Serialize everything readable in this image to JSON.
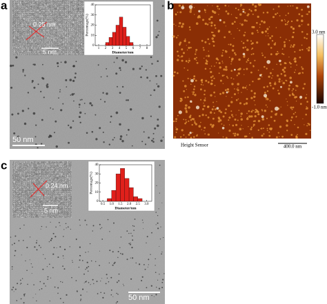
{
  "panels": [
    {
      "label": "a",
      "inset_lattice": "0.25 nm",
      "inset_scale": "5 nm",
      "scale_bar": "50 nm",
      "histogram": {
        "type": "bar",
        "y_label": "Percentage(%)",
        "x_label": "Diameter/nm",
        "bins": [
          2,
          2.5,
          3,
          3.5,
          4,
          4.5,
          5,
          5.5,
          6
        ],
        "values": [
          3,
          8,
          13,
          20,
          28,
          18,
          9,
          3
        ],
        "color": "#e0201b",
        "xlim": [
          0.5,
          8.5
        ],
        "xticks": [
          1,
          2,
          3,
          4,
          5,
          6,
          7,
          8
        ],
        "ylim": [
          0,
          40
        ],
        "yticks": [
          0,
          10,
          20,
          30,
          40
        ]
      }
    },
    {
      "label": "b",
      "color_bar_max": "3.0 nm",
      "color_bar_min": "-1.0 nm",
      "channel": "Height Sensor",
      "scale_bar": "400.0 nm"
    },
    {
      "label": "c",
      "inset_lattice": "0.24 nm",
      "inset_scale": "5 nm",
      "scale_bar": "50 nm",
      "histogram": {
        "type": "bar",
        "y_label": "Percentage(%)",
        "x_label": "Diameter/nm",
        "bins": [
          0.75,
          1,
          1.25,
          1.5,
          1.75,
          2,
          2.25,
          2.5,
          2.75
        ],
        "values": [
          3,
          12,
          30,
          36,
          25,
          15,
          5,
          3
        ],
        "color": "#e0201b",
        "xlim": [
          0.3,
          3.3
        ],
        "xticks": [
          0.5,
          {
            "value": 1,
            "label": "1.0"
          },
          1.5,
          {
            "value": 2,
            "label": "2.0"
          },
          2.5,
          {
            "value": 3,
            "label": "3.0"
          }
        ],
        "ylim": [
          0,
          40
        ],
        "yticks": [
          0,
          10,
          20,
          30,
          40
        ]
      }
    }
  ]
}
